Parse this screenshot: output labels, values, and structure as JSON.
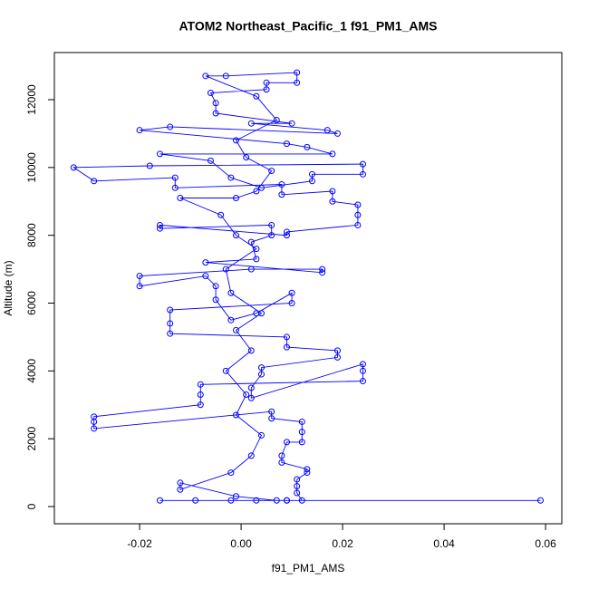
{
  "chart_data": {
    "type": "line",
    "markers": "open-circle",
    "title": "ATOM2 Northeast_Pacific_1 f91_PM1_AMS",
    "x_label": "f91_PM1_AMS",
    "y_label": "Altitude (m)",
    "color": "#0000ff",
    "xlim": [
      -0.0368,
      0.0632
    ],
    "ylim": [
      -508,
      13390
    ],
    "xticks": [
      -0.02,
      {
        "value": 0,
        "label": "0.00"
      },
      0.02,
      0.04,
      0.06
    ],
    "yticks": [
      0,
      2000,
      4000,
      6000,
      8000,
      10000,
      12000
    ],
    "x": [
      0.059,
      -0.016,
      -0.009,
      -0.002,
      0.003,
      0.009,
      0.012,
      0.011,
      0.011,
      0.011,
      0.013,
      0.013,
      0.008,
      0.008,
      0.009,
      0.012,
      0.012,
      0.012,
      0.006,
      0.006,
      -0.029,
      -0.029,
      -0.029,
      -0.008,
      -0.008,
      -0.008,
      0.024,
      0.024,
      0.024,
      0.002,
      0.002,
      0.004,
      0.004,
      0.019,
      0.019,
      0.009,
      0.009,
      -0.014,
      -0.014,
      -0.014,
      0.01,
      0.01,
      0.003,
      -0.002,
      -0.005,
      -0.005,
      -0.007,
      -0.02,
      -0.02,
      0.002,
      0.016,
      0.016,
      -0.007,
      0.003,
      0.002,
      0.006,
      0.006,
      -0.016,
      -0.016,
      0.009,
      0.009,
      0.023,
      0.023,
      0.023,
      0.018,
      0.018,
      0.008,
      0.008,
      -0.013,
      -0.013,
      -0.029,
      -0.033,
      -0.018,
      0.024,
      0.024,
      0.014,
      0.014,
      0.004,
      -0.002,
      -0.006,
      -0.016,
      0.018,
      0.013,
      0.009,
      -0.02,
      -0.014,
      0.019,
      0.017,
      0.002,
      0.01,
      -0.005,
      -0.005,
      -0.006,
      0.005,
      0.005,
      0.011,
      0.011,
      -0.003,
      -0.007,
      0.003,
      0.007,
      -0.001,
      0.001,
      0.006,
      0.003,
      -0.001,
      -0.012,
      -0.004,
      -0.001,
      0.003,
      -0.003,
      -0.002,
      0.004,
      -0.001,
      0.002,
      -0.003,
      0.001,
      -0.001,
      0.004,
      0.002,
      -0.002,
      -0.012,
      -0.012,
      -0.001,
      0.007,
      0.009
    ],
    "values": [
      180,
      180,
      180,
      180,
      180,
      180,
      180,
      400,
      600,
      800,
      1000,
      1100,
      1300,
      1500,
      1900,
      1900,
      2200,
      2500,
      2600,
      2800,
      2300,
      2500,
      2650,
      3000,
      3300,
      3600,
      3700,
      4000,
      4200,
      3200,
      3500,
      3900,
      4100,
      4400,
      4600,
      4700,
      5000,
      5100,
      5400,
      5800,
      6000,
      6300,
      5700,
      5500,
      6100,
      6500,
      6800,
      6500,
      6800,
      7000,
      7000,
      6900,
      7200,
      7300,
      7800,
      8000,
      8300,
      8200,
      8300,
      8000,
      8100,
      8300,
      8600,
      8900,
      9000,
      9300,
      9200,
      9500,
      9400,
      9700,
      9600,
      10000,
      10050,
      10100,
      9800,
      9800,
      9600,
      9400,
      9700,
      10200,
      10400,
      10400,
      10600,
      10700,
      11100,
      11200,
      11000,
      11100,
      11300,
      11300,
      11600,
      11900,
      12200,
      12300,
      12500,
      12500,
      12800,
      12700,
      12700,
      12100,
      11400,
      10800,
      10300,
      9900,
      9300,
      9100,
      9100,
      8600,
      8000,
      7600,
      7000,
      6300,
      5700,
      5200,
      4600,
      4000,
      3300,
      2700,
      2100,
      1500,
      1000,
      500,
      700,
      300,
      180,
      180
    ]
  }
}
